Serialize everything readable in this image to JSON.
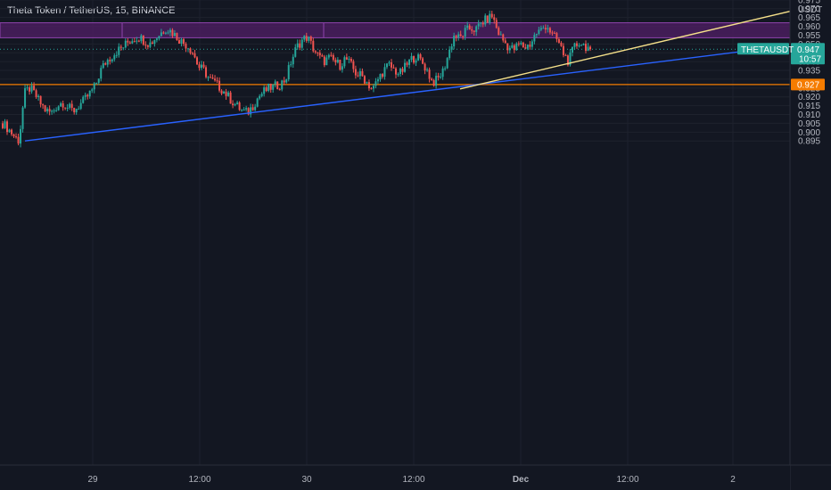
{
  "title": "Theta Token / TetherUS, 15, BINANCE",
  "colors": {
    "background": "#131722",
    "up": "#26a69a",
    "down": "#ef5350",
    "zone_fill": "#4a1d5e",
    "zone_border": "#8e44ad",
    "support": "#f57c00",
    "trendline_blue": "#2962ff",
    "trendline_yellow": "#f5e08a",
    "price_tag": "#26a69a",
    "axis_text": "#b2b5be"
  },
  "chart_data": {
    "type": "candlestick",
    "y_axis": {
      "unit": "USDT",
      "range": [
        0.892,
        0.9765
      ],
      "ticks": [
        0.895,
        0.9,
        0.905,
        0.91,
        0.915,
        0.92,
        0.925,
        0.93,
        0.935,
        0.94,
        0.945,
        0.95,
        0.955,
        0.96,
        0.965,
        0.97,
        0.975
      ],
      "tick_labels": [
        "0.895",
        "0.900",
        "0.905",
        "0.910",
        "0.915",
        "0.920",
        "0.925",
        "",
        "0.935",
        "0.940",
        "",
        "0.950",
        "0.955",
        "0.960",
        "0.965",
        "0.970",
        "0.975"
      ]
    },
    "x_axis": {
      "tick_labels": [
        "29",
        "12:00",
        "30",
        "12:00",
        "Dec",
        "12:00",
        "2"
      ],
      "bold": [
        false,
        false,
        false,
        false,
        true,
        false,
        false
      ]
    },
    "close_path": [
      0.905,
      0.902,
      0.898,
      0.895,
      0.922,
      0.925,
      0.921,
      0.916,
      0.912,
      0.911,
      0.915,
      0.917,
      0.914,
      0.912,
      0.915,
      0.918,
      0.922,
      0.926,
      0.935,
      0.94,
      0.943,
      0.946,
      0.948,
      0.951,
      0.953,
      0.954,
      0.952,
      0.95,
      0.953,
      0.956,
      0.959,
      0.957,
      0.954,
      0.951,
      0.949,
      0.945,
      0.937,
      0.935,
      0.93,
      0.928,
      0.925,
      0.922,
      0.918,
      0.915,
      0.912,
      0.911,
      0.915,
      0.92,
      0.923,
      0.925,
      0.926,
      0.927,
      0.93,
      0.94,
      0.948,
      0.952,
      0.954,
      0.948,
      0.943,
      0.94,
      0.942,
      0.94,
      0.938,
      0.942,
      0.938,
      0.933,
      0.932,
      0.928,
      0.924,
      0.93,
      0.935,
      0.938,
      0.935,
      0.933,
      0.937,
      0.941,
      0.943,
      0.94,
      0.935,
      0.928,
      0.93,
      0.935,
      0.945,
      0.955,
      0.953,
      0.957,
      0.959,
      0.958,
      0.962,
      0.964,
      0.966,
      0.957,
      0.952,
      0.948,
      0.947,
      0.95,
      0.948,
      0.95,
      0.956,
      0.958,
      0.961,
      0.955,
      0.952,
      0.945,
      0.94,
      0.948,
      0.951,
      0.949,
      0.947
    ],
    "last_price": "0.947",
    "countdown": "10:57",
    "symbol": "THETAUSDT",
    "resistance_zone": {
      "low": 0.9535,
      "high": 0.962,
      "label": ""
    },
    "support_line": {
      "value": 0.927,
      "label": "0.927"
    },
    "trendlines": [
      {
        "name": "",
        "color": "blue",
        "points": [
          [
            0.895,
            0
          ],
          [
            0.948,
            1
          ]
        ]
      },
      {
        "name": "",
        "color": "yellow",
        "points": [
          [
            0.9245,
            0
          ],
          [
            0.9685,
            1
          ]
        ]
      }
    ]
  }
}
